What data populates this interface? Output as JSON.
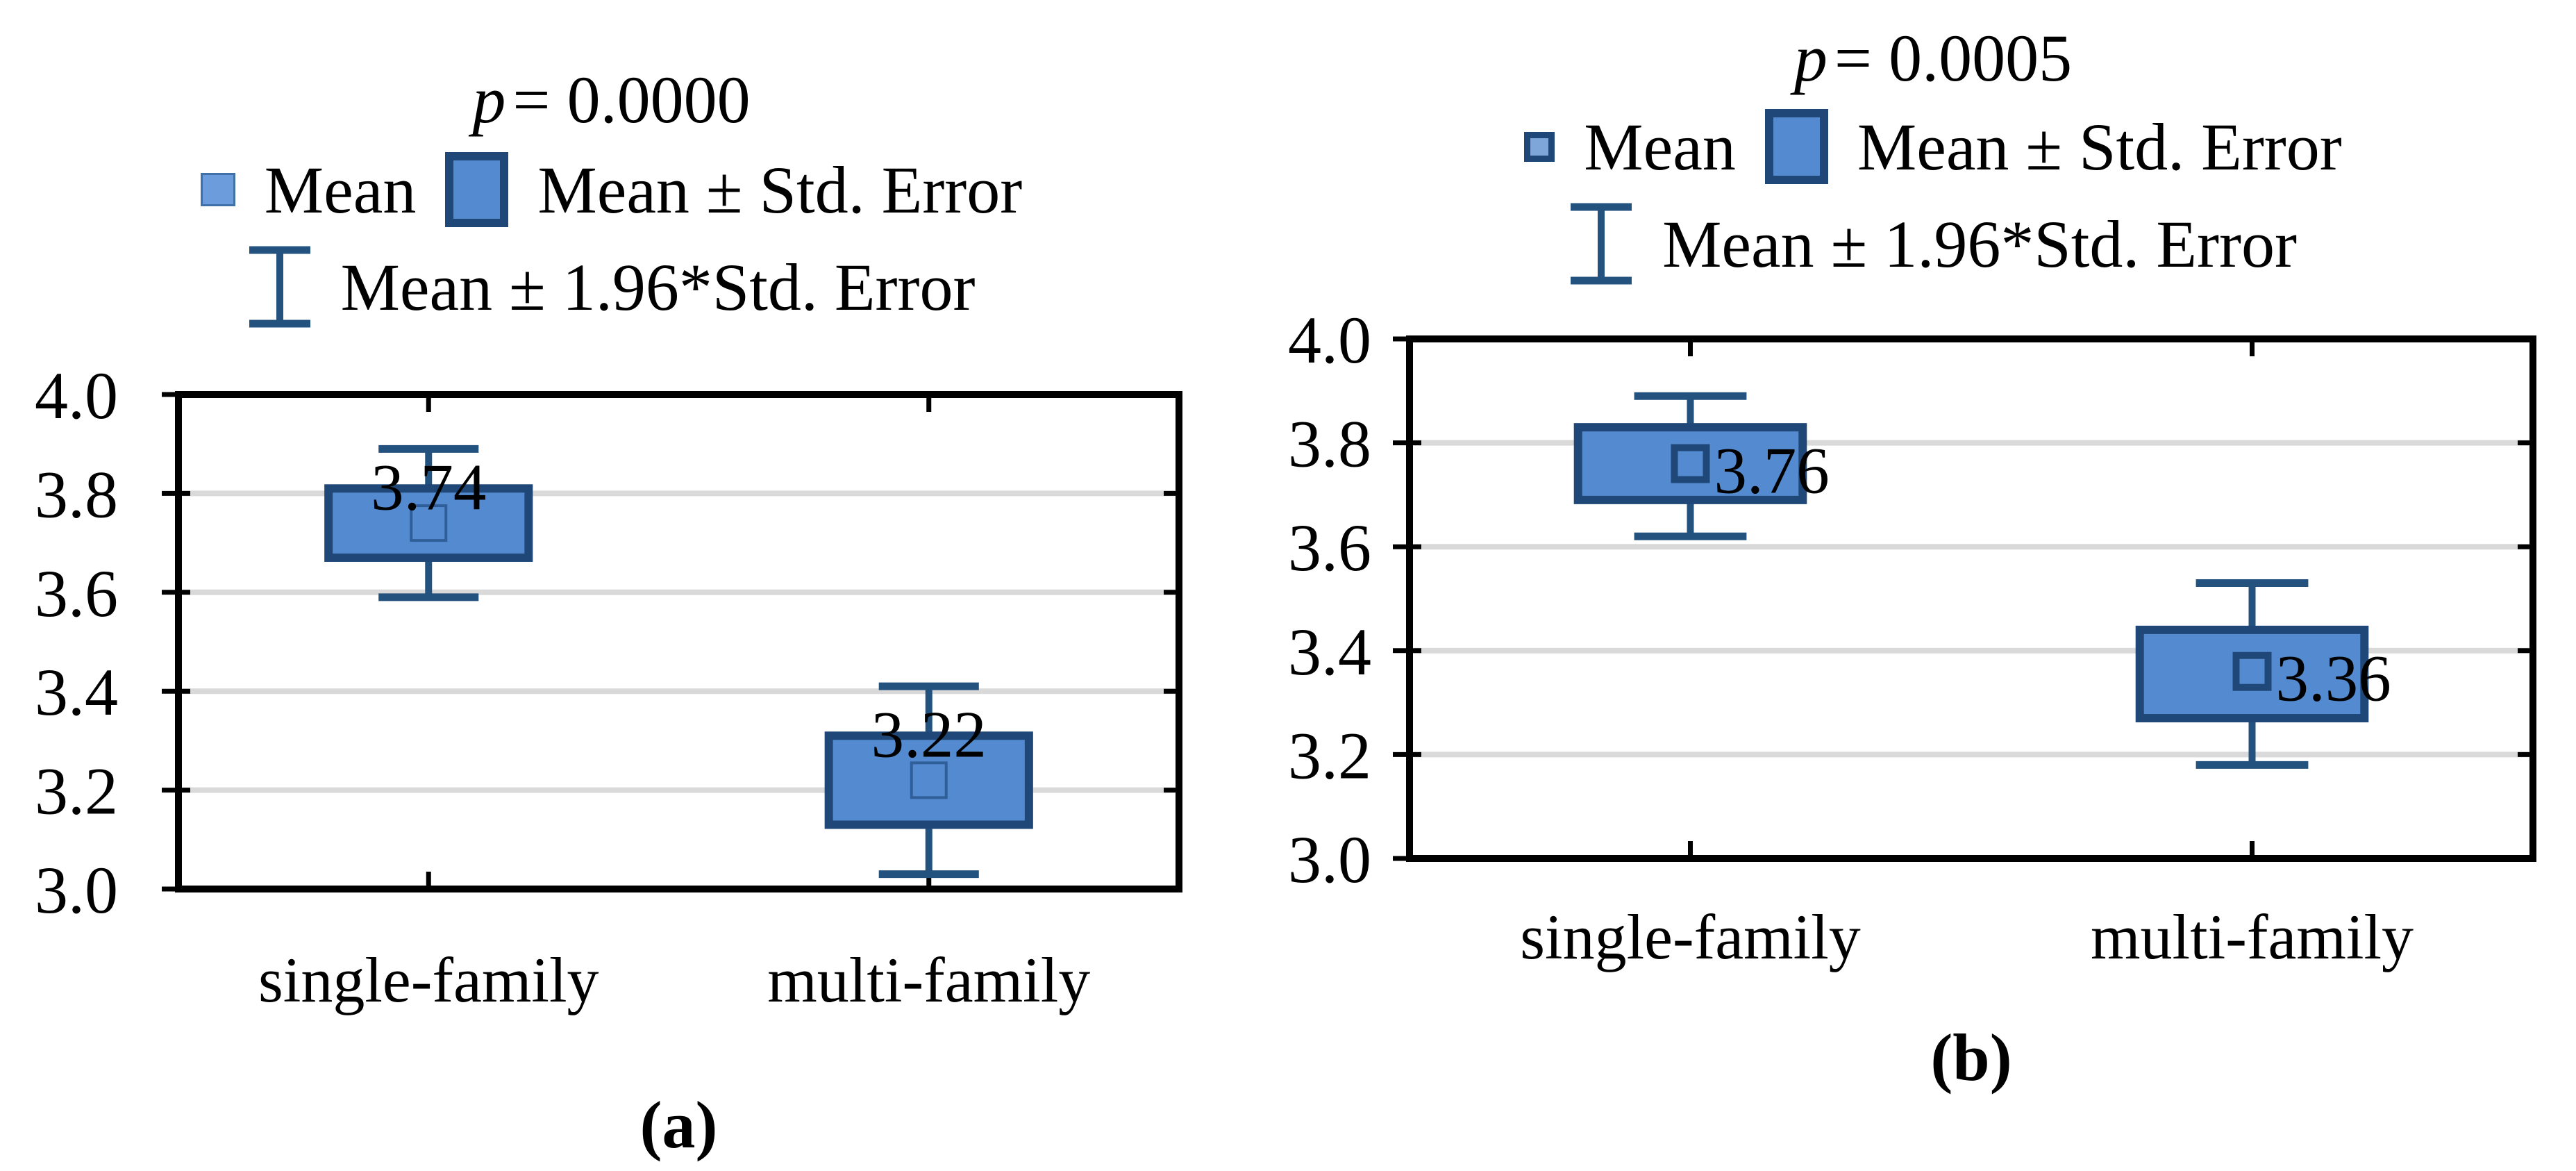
{
  "figure": {
    "background": "#FFFFFF"
  },
  "colors": {
    "box_fill": "#548BD0",
    "box_border": "#1F4878",
    "whisker": "#24527F",
    "grid": "#D9D9D9",
    "axis": "#000000",
    "mean_marker_a": "#2F5E99",
    "mean_marker_b": "#1F4878",
    "legend_mean_fill_a": "#6C9CDB",
    "legend_mean_fill_b": "#7FA6D9"
  },
  "chart_data": [
    {
      "panel": "a",
      "letter": "(a)",
      "type": "box",
      "title": "p = 0.0000",
      "p_var": "p",
      "p_rest": "= 0.0000",
      "legend": {
        "position": "top",
        "mean": "Mean",
        "std_error": "Mean ± Std. Error",
        "ci": "Mean ± 1.96*Std. Error"
      },
      "categories": [
        "single-family",
        "multi-family"
      ],
      "ylim": [
        3.0,
        4.0
      ],
      "yticks": [
        "3.0",
        "3.2",
        "3.4",
        "3.6",
        "3.8",
        "4.0"
      ],
      "grid": true,
      "value_label_position": "above",
      "series": [
        {
          "category": "single-family",
          "mean": 3.74,
          "label": "3.74",
          "box_low": 3.67,
          "box_high": 3.81,
          "whisker_low": 3.59,
          "whisker_high": 3.89
        },
        {
          "category": "multi-family",
          "mean": 3.22,
          "label": "3.22",
          "box_low": 3.13,
          "box_high": 3.31,
          "whisker_low": 3.03,
          "whisker_high": 3.41
        }
      ]
    },
    {
      "panel": "b",
      "letter": "(b)",
      "type": "box",
      "title": "p = 0.0005",
      "p_var": "p",
      "p_rest": "= 0.0005",
      "legend": {
        "position": "top",
        "mean": "Mean",
        "std_error": "Mean ± Std. Error",
        "ci": "Mean ± 1.96*Std. Error"
      },
      "categories": [
        "single-family",
        "multi-family"
      ],
      "ylim": [
        3.0,
        4.0
      ],
      "yticks": [
        "3.0",
        "3.2",
        "3.4",
        "3.6",
        "3.8",
        "4.0"
      ],
      "grid": true,
      "value_label_position": "right",
      "series": [
        {
          "category": "single-family",
          "mean": 3.76,
          "label": "3.76",
          "box_low": 3.69,
          "box_high": 3.83,
          "whisker_low": 3.62,
          "whisker_high": 3.89
        },
        {
          "category": "multi-family",
          "mean": 3.36,
          "label": "3.36",
          "box_low": 3.27,
          "box_high": 3.44,
          "whisker_low": 3.18,
          "whisker_high": 3.53
        }
      ]
    }
  ]
}
